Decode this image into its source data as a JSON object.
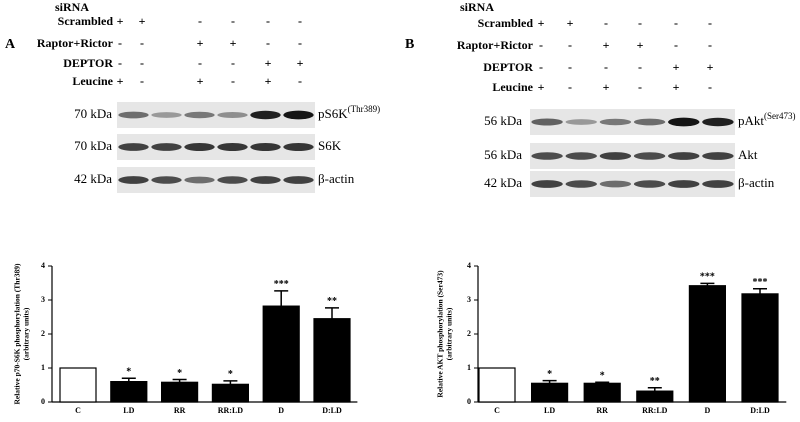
{
  "panels": [
    {
      "label": "A",
      "header": "siRNA",
      "rows": [
        {
          "label": "Scrambled",
          "signs": [
            "+",
            "+",
            "-",
            "-",
            "-",
            "-"
          ]
        },
        {
          "label": "Raptor+Rictor",
          "signs": [
            "-",
            "-",
            "+",
            "+",
            "-",
            "-"
          ]
        },
        {
          "label": "DEPTOR",
          "signs": [
            "-",
            "-",
            "-",
            "-",
            "+",
            "+"
          ]
        },
        {
          "label": "Leucine",
          "signs": [
            "+",
            "-",
            "+",
            "-",
            "+",
            "-"
          ]
        }
      ],
      "blots": [
        {
          "kda": "70 kDa",
          "name": "pS6K",
          "sup": "(Thr389)"
        },
        {
          "kda": "70 kDa",
          "name": "S6K"
        },
        {
          "kda": "42 kDa",
          "name": "β-actin"
        }
      ]
    },
    {
      "label": "B",
      "header": "siRNA",
      "rows": [
        {
          "label": "Scrambled",
          "signs": [
            "+",
            "+",
            "-",
            "-",
            "-",
            "-"
          ]
        },
        {
          "label": "Raptor+Rictor",
          "signs": [
            "-",
            "-",
            "+",
            "+",
            "-",
            "-"
          ]
        },
        {
          "label": "DEPTOR",
          "signs": [
            "-",
            "-",
            "-",
            "-",
            "+",
            "+"
          ]
        },
        {
          "label": "Leucine",
          "signs": [
            "+",
            "-",
            "+",
            "-",
            "+",
            "-"
          ]
        }
      ],
      "blots": [
        {
          "kda": "56 kDa",
          "name": "pAkt",
          "sup": "(Ser473)"
        },
        {
          "kda": "56 kDa",
          "name": "Akt"
        },
        {
          "kda": "42 kDa",
          "name": "β-actin"
        }
      ]
    }
  ],
  "chart_data": [
    {
      "type": "bar",
      "ylabel": [
        "Relative p70-S6K phosphorylation (Thr389)",
        "(arbitrary units)"
      ],
      "categories": [
        "C",
        "LD",
        "RR",
        "RR:LD",
        "D",
        "D:LD"
      ],
      "values": [
        1.0,
        0.6,
        0.58,
        0.52,
        2.82,
        2.45
      ],
      "errors": [
        0,
        0.1,
        0.08,
        0.1,
        0.45,
        0.32
      ],
      "annotations": [
        null,
        "*",
        "*",
        "*",
        "***",
        "**"
      ],
      "colors": [
        "#ffffff",
        "#000000",
        "#000000",
        "#000000",
        "#000000",
        "#000000"
      ],
      "ylim": [
        0,
        4
      ],
      "yticks": [
        0,
        1,
        2,
        3,
        4
      ]
    },
    {
      "type": "bar",
      "ylabel": [
        "Relative AKT phosphorylation (Ser473)",
        "(arbitrary units)"
      ],
      "categories": [
        "C",
        "LD",
        "RR",
        "RR:LD",
        "D",
        "D:LD"
      ],
      "values": [
        1.0,
        0.55,
        0.55,
        0.32,
        3.42,
        3.18
      ],
      "errors": [
        0,
        0.08,
        0.03,
        0.1,
        0.07,
        0.15
      ],
      "annotations": [
        null,
        "*",
        "*",
        "**",
        "***",
        "***"
      ],
      "colors": [
        "#ffffff",
        "#000000",
        "#000000",
        "#000000",
        "#000000",
        "#000000"
      ],
      "ylim": [
        0,
        4
      ],
      "yticks": [
        0,
        1,
        2,
        3,
        4
      ]
    }
  ]
}
